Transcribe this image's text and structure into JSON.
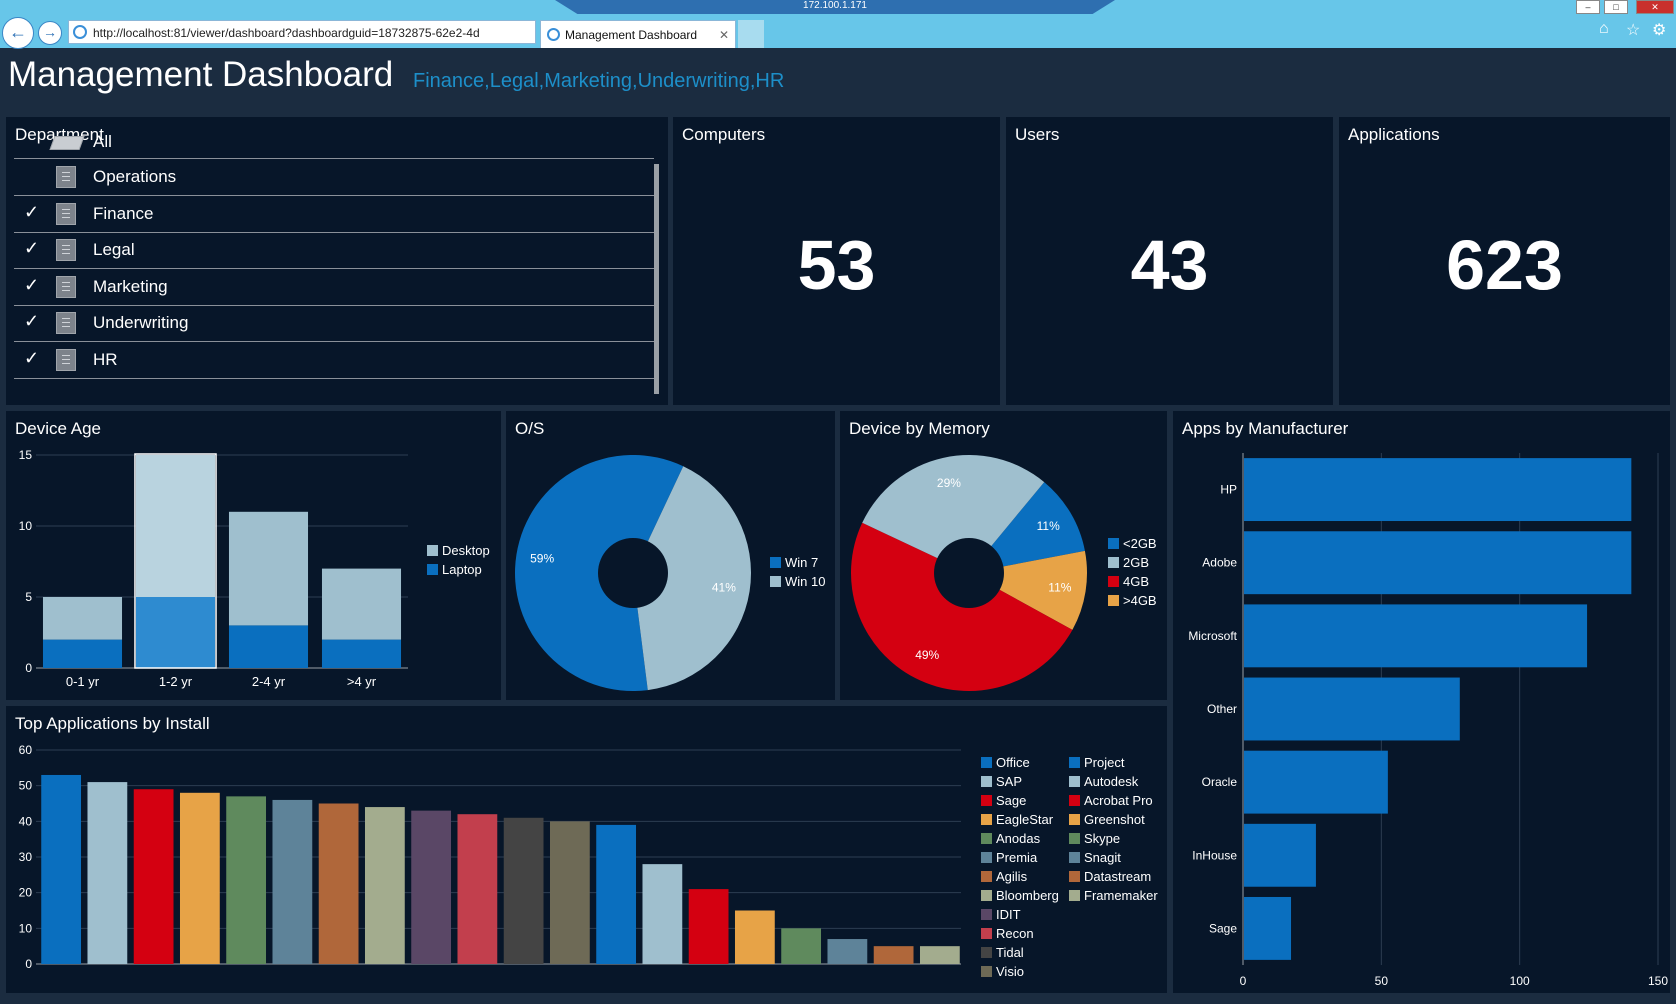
{
  "browser": {
    "url": "http://localhost:81/viewer/dashboard?dashboardguid=18732875-62e2-4d",
    "tab_label": "Management Dashboard",
    "remote_address": "172.100.1.171"
  },
  "header": {
    "title": "Management Dashboard",
    "subtitle": "Finance,Legal,Marketing,Underwriting,HR"
  },
  "department": {
    "title": "Department",
    "items": [
      {
        "label": "All",
        "checked": false
      },
      {
        "label": "Operations",
        "checked": false
      },
      {
        "label": "Finance",
        "checked": true
      },
      {
        "label": "Legal",
        "checked": true
      },
      {
        "label": "Marketing",
        "checked": true
      },
      {
        "label": "Underwriting",
        "checked": true
      },
      {
        "label": "HR",
        "checked": true
      }
    ]
  },
  "kpis": {
    "computers": {
      "title": "Computers",
      "value": "53"
    },
    "users": {
      "title": "Users",
      "value": "43"
    },
    "applications": {
      "title": "Applications",
      "value": "623"
    }
  },
  "colors": {
    "blue": "#0a6fbf",
    "light_blue": "#9fbfce",
    "red": "#d40011",
    "orange": "#e7a347",
    "panel_bg": "#071629",
    "page_bg": "#1b2c40"
  },
  "chart_data": [
    {
      "id": "device_age",
      "type": "bar",
      "stacked": true,
      "title": "Device Age",
      "categories": [
        "0-1 yr",
        "1-2 yr",
        "2-4 yr",
        ">4 yr"
      ],
      "series": [
        {
          "name": "Desktop",
          "values": [
            3,
            10,
            8,
            5
          ],
          "color": "#9fbfce"
        },
        {
          "name": "Laptop",
          "values": [
            2,
            5,
            3,
            2
          ],
          "color": "#0a6fbf"
        }
      ],
      "ylim": [
        0,
        15
      ],
      "yticks": [
        "0",
        "5",
        "10",
        "15"
      ],
      "selected_category": "1-2 yr",
      "legend": "right",
      "grid": true
    },
    {
      "id": "os",
      "type": "pie",
      "donut": true,
      "title": "O/S",
      "slices": [
        {
          "name": "Win 7",
          "value": 59,
          "label": "59%",
          "color": "#0a6fbf"
        },
        {
          "name": "Win 10",
          "value": 41,
          "label": "41%",
          "color": "#9fbfce"
        }
      ],
      "legend": "right"
    },
    {
      "id": "device_by_memory",
      "type": "pie",
      "donut": true,
      "title": "Device by Memory",
      "slices": [
        {
          "name": "<2GB",
          "value": 11,
          "label": "11%",
          "color": "#0a6fbf"
        },
        {
          "name": "2GB",
          "value": 29,
          "label": "29%",
          "color": "#9fbfce"
        },
        {
          "name": "4GB",
          "value": 49,
          "label": "49%",
          "color": "#d40011"
        },
        {
          "name": ">4GB",
          "value": 11,
          "label": "11%",
          "color": "#e7a347"
        }
      ],
      "legend": "right"
    },
    {
      "id": "apps_by_manufacturer",
      "type": "bar",
      "orientation": "horizontal",
      "title": "Apps by Manufacturer",
      "categories": [
        "HP",
        "Adobe",
        "Microsoft",
        "Other",
        "Oracle",
        "InHouse",
        "Sage"
      ],
      "values": [
        140,
        140,
        124,
        78,
        52,
        26,
        17
      ],
      "xlim": [
        0,
        150
      ],
      "xticks": [
        "0",
        "50",
        "100",
        "150"
      ],
      "color": "#0a6fbf",
      "grid": true
    },
    {
      "id": "top_applications",
      "type": "bar",
      "title": "Top Applications by Install",
      "categories": [
        "Office",
        "SAP",
        "Sage",
        "EagleStar",
        "Anodas",
        "Premia",
        "Agilis",
        "Bloomberg",
        "IDIT",
        "Recon",
        "Tidal",
        "Visio",
        "Project",
        "Autodesk",
        "Acrobat Pro",
        "Greenshot",
        "Skype",
        "Snagit",
        "Datastream",
        "Framemaker"
      ],
      "values": [
        53,
        51,
        49,
        48,
        47,
        46,
        45,
        44,
        43,
        42,
        41,
        40,
        39,
        28,
        21,
        15,
        10,
        7,
        5,
        5
      ],
      "colors": [
        "#0a6fbf",
        "#9fbfce",
        "#d40011",
        "#e7a347",
        "#5f8a5d",
        "#5e8399",
        "#b0673a",
        "#a3ac8e",
        "#5a4766",
        "#c23f4d",
        "#444444",
        "#6e6a56",
        "#0a6fbf",
        "#9fbfce",
        "#d40011",
        "#e7a347",
        "#5f8a5d",
        "#5e8399",
        "#b0673a",
        "#a3ac8e"
      ],
      "ylim": [
        0,
        60
      ],
      "yticks": [
        "0",
        "10",
        "20",
        "30",
        "40",
        "50",
        "60"
      ],
      "legend": "right",
      "grid": true
    }
  ]
}
